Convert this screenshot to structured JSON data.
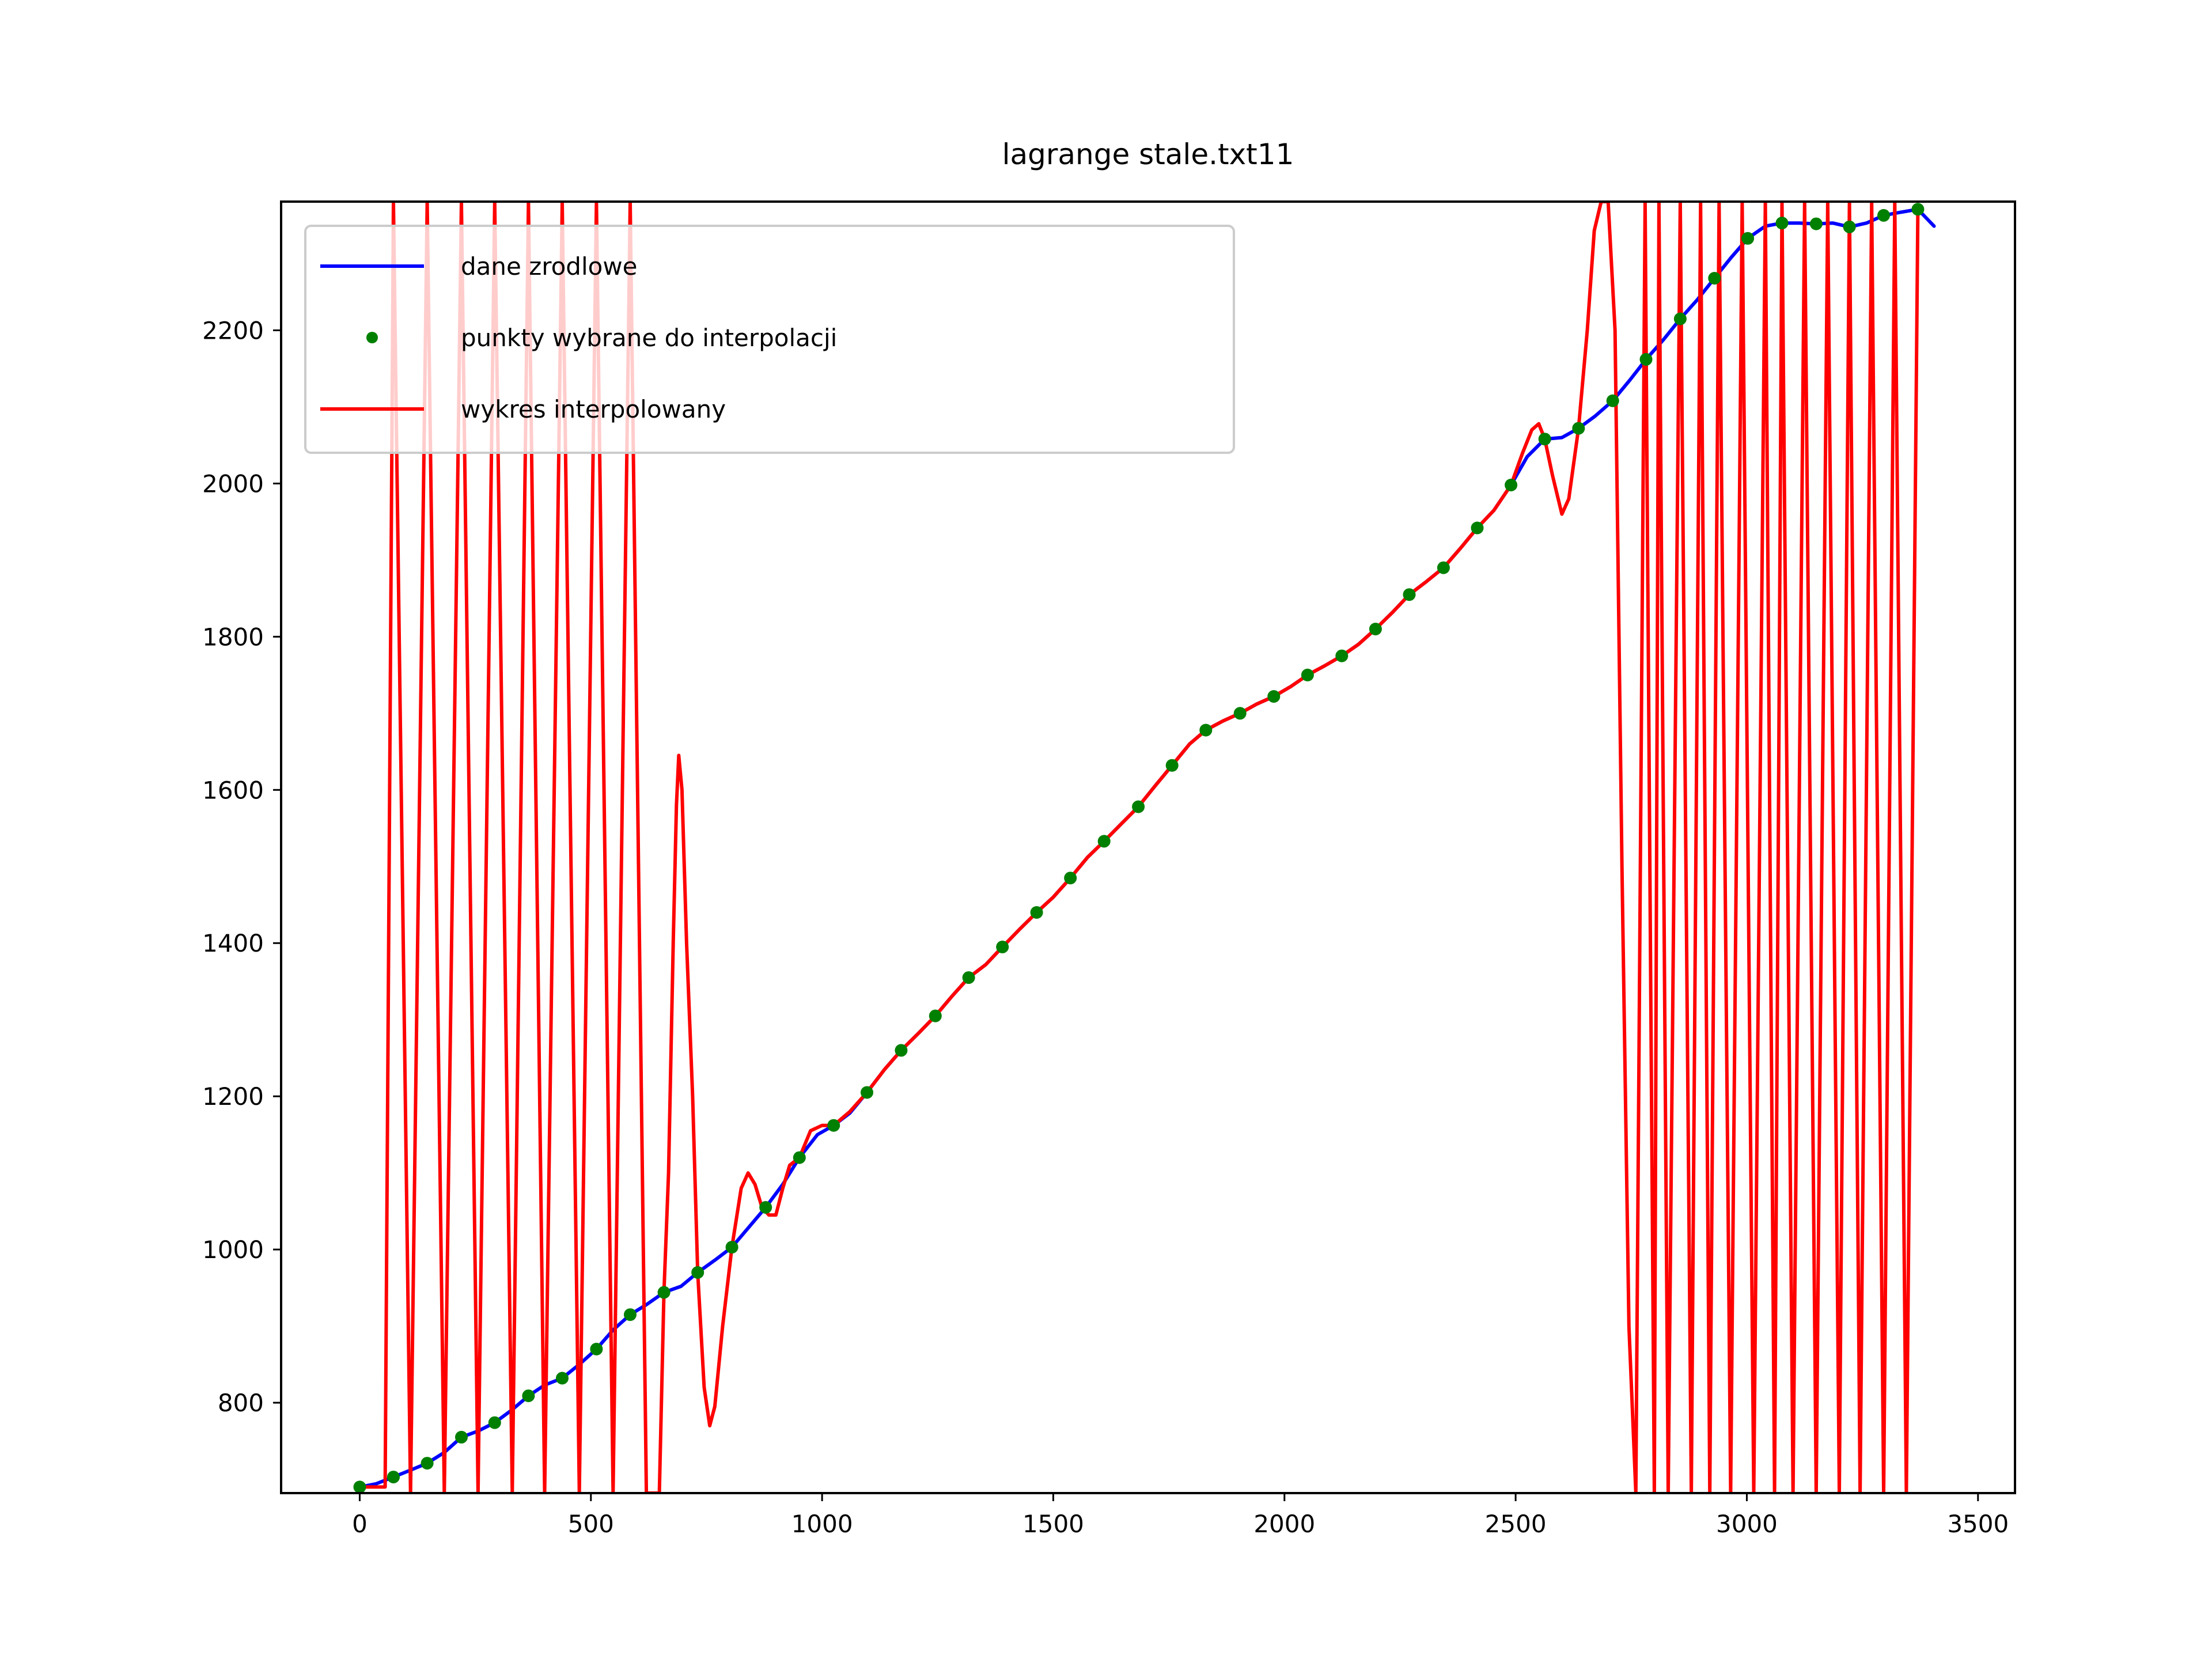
{
  "chart_data": {
    "type": "line",
    "title": "lagrange stale.txt11",
    "xlabel": "",
    "ylabel": "",
    "xlim": [
      -170,
      3580
    ],
    "ylim": [
      682,
      2368
    ],
    "x_ticks": [
      0,
      500,
      1000,
      1500,
      2000,
      2500,
      3000,
      3500
    ],
    "y_ticks": [
      800,
      1000,
      1200,
      1400,
      1600,
      1800,
      2000,
      2200
    ],
    "grid": false,
    "legend_position": "upper-left",
    "legend": [
      {
        "label": "dane zrodlowe",
        "color": "#0000ff",
        "marker": "line"
      },
      {
        "label": "punkty wybrane do interpolacji",
        "color": "#008000",
        "marker": "dot"
      },
      {
        "label": "wykres interpolowany",
        "color": "#ff0000",
        "marker": "line"
      }
    ],
    "series": [
      {
        "name": "dane zrodlowe",
        "color": "#0000ff",
        "kind": "line",
        "points": [
          [
            0,
            690
          ],
          [
            35,
            694
          ],
          [
            73,
            703
          ],
          [
            110,
            712
          ],
          [
            146,
            721
          ],
          [
            183,
            735
          ],
          [
            220,
            755
          ],
          [
            256,
            763
          ],
          [
            292,
            774
          ],
          [
            330,
            791
          ],
          [
            365,
            809
          ],
          [
            400,
            823
          ],
          [
            438,
            832
          ],
          [
            475,
            850
          ],
          [
            512,
            870
          ],
          [
            548,
            895
          ],
          [
            585,
            915
          ],
          [
            620,
            928
          ],
          [
            658,
            944
          ],
          [
            695,
            952
          ],
          [
            731,
            970
          ],
          [
            768,
            986
          ],
          [
            805,
            1003
          ],
          [
            840,
            1028
          ],
          [
            878,
            1055
          ],
          [
            915,
            1085
          ],
          [
            951,
            1120
          ],
          [
            990,
            1150
          ],
          [
            1025,
            1162
          ],
          [
            1060,
            1178
          ],
          [
            1097,
            1205
          ],
          [
            1135,
            1235
          ],
          [
            1171,
            1260
          ],
          [
            1208,
            1282
          ],
          [
            1245,
            1305
          ],
          [
            1280,
            1330
          ],
          [
            1317,
            1355
          ],
          [
            1354,
            1372
          ],
          [
            1390,
            1395
          ],
          [
            1427,
            1418
          ],
          [
            1464,
            1440
          ],
          [
            1500,
            1460
          ],
          [
            1537,
            1485
          ],
          [
            1574,
            1512
          ],
          [
            1610,
            1533
          ],
          [
            1646,
            1555
          ],
          [
            1684,
            1578
          ],
          [
            1720,
            1605
          ],
          [
            1757,
            1632
          ],
          [
            1795,
            1660
          ],
          [
            1830,
            1678
          ],
          [
            1867,
            1690
          ],
          [
            1904,
            1700
          ],
          [
            1940,
            1712
          ],
          [
            1977,
            1722
          ],
          [
            2014,
            1735
          ],
          [
            2050,
            1750
          ],
          [
            2087,
            1762
          ],
          [
            2124,
            1775
          ],
          [
            2160,
            1790
          ],
          [
            2197,
            1810
          ],
          [
            2234,
            1832
          ],
          [
            2270,
            1855
          ],
          [
            2307,
            1872
          ],
          [
            2344,
            1890
          ],
          [
            2380,
            1915
          ],
          [
            2417,
            1942
          ],
          [
            2453,
            1965
          ],
          [
            2490,
            1998
          ],
          [
            2525,
            2035
          ],
          [
            2563,
            2058
          ],
          [
            2600,
            2060
          ],
          [
            2636,
            2072
          ],
          [
            2672,
            2088
          ],
          [
            2710,
            2108
          ],
          [
            2747,
            2135
          ],
          [
            2782,
            2162
          ],
          [
            2820,
            2188
          ],
          [
            2856,
            2215
          ],
          [
            2893,
            2240
          ],
          [
            2930,
            2268
          ],
          [
            2966,
            2295
          ],
          [
            3002,
            2320
          ],
          [
            3040,
            2336
          ],
          [
            3076,
            2340
          ],
          [
            3113,
            2340
          ],
          [
            3150,
            2339
          ],
          [
            3186,
            2340
          ],
          [
            3222,
            2335
          ],
          [
            3259,
            2340
          ],
          [
            3296,
            2350
          ],
          [
            3332,
            2354
          ],
          [
            3370,
            2358
          ],
          [
            3405,
            2336
          ]
        ]
      },
      {
        "name": "punkty wybrane do interpolacji",
        "color": "#008000",
        "kind": "markers",
        "points": [
          [
            0,
            690
          ],
          [
            73,
            703
          ],
          [
            146,
            721
          ],
          [
            220,
            755
          ],
          [
            292,
            774
          ],
          [
            365,
            809
          ],
          [
            438,
            832
          ],
          [
            512,
            870
          ],
          [
            585,
            915
          ],
          [
            658,
            944
          ],
          [
            731,
            970
          ],
          [
            805,
            1003
          ],
          [
            878,
            1055
          ],
          [
            951,
            1120
          ],
          [
            1025,
            1162
          ],
          [
            1097,
            1205
          ],
          [
            1171,
            1260
          ],
          [
            1245,
            1305
          ],
          [
            1317,
            1355
          ],
          [
            1390,
            1395
          ],
          [
            1464,
            1440
          ],
          [
            1537,
            1485
          ],
          [
            1610,
            1533
          ],
          [
            1684,
            1578
          ],
          [
            1757,
            1632
          ],
          [
            1830,
            1678
          ],
          [
            1904,
            1700
          ],
          [
            1977,
            1722
          ],
          [
            2050,
            1750
          ],
          [
            2124,
            1775
          ],
          [
            2197,
            1810
          ],
          [
            2270,
            1855
          ],
          [
            2344,
            1890
          ],
          [
            2417,
            1942
          ],
          [
            2490,
            1998
          ],
          [
            2563,
            2058
          ],
          [
            2636,
            2072
          ],
          [
            2710,
            2108
          ],
          [
            2782,
            2162
          ],
          [
            2856,
            2215
          ],
          [
            2930,
            2268
          ],
          [
            3002,
            2320
          ],
          [
            3076,
            2340
          ],
          [
            3150,
            2339
          ],
          [
            3222,
            2335
          ],
          [
            3296,
            2350
          ],
          [
            3370,
            2358
          ]
        ]
      },
      {
        "name": "wykres interpolowany",
        "color": "#ff0000",
        "kind": "line",
        "points": [
          [
            0,
            690
          ],
          [
            55,
            690
          ],
          [
            73,
            2368
          ],
          [
            110,
            682
          ],
          [
            146,
            2368
          ],
          [
            183,
            682
          ],
          [
            220,
            2368
          ],
          [
            256,
            682
          ],
          [
            292,
            2368
          ],
          [
            330,
            682
          ],
          [
            365,
            2368
          ],
          [
            400,
            682
          ],
          [
            438,
            2368
          ],
          [
            475,
            682
          ],
          [
            512,
            2368
          ],
          [
            548,
            682
          ],
          [
            585,
            2368
          ],
          [
            620,
            682
          ],
          [
            648,
            682
          ],
          [
            658,
            944
          ],
          [
            668,
            1100
          ],
          [
            678,
            1400
          ],
          [
            685,
            1580
          ],
          [
            690,
            1645
          ],
          [
            697,
            1600
          ],
          [
            707,
            1400
          ],
          [
            720,
            1200
          ],
          [
            731,
            970
          ],
          [
            745,
            820
          ],
          [
            757,
            770
          ],
          [
            768,
            795
          ],
          [
            785,
            900
          ],
          [
            805,
            1003
          ],
          [
            825,
            1080
          ],
          [
            840,
            1100
          ],
          [
            855,
            1085
          ],
          [
            870,
            1055
          ],
          [
            885,
            1045
          ],
          [
            900,
            1045
          ],
          [
            915,
            1080
          ],
          [
            930,
            1110
          ],
          [
            951,
            1120
          ],
          [
            975,
            1155
          ],
          [
            1000,
            1162
          ],
          [
            1025,
            1162
          ],
          [
            1060,
            1180
          ],
          [
            1097,
            1205
          ],
          [
            1135,
            1235
          ],
          [
            1171,
            1260
          ],
          [
            1208,
            1282
          ],
          [
            1245,
            1305
          ],
          [
            1280,
            1330
          ],
          [
            1317,
            1355
          ],
          [
            1354,
            1372
          ],
          [
            1390,
            1395
          ],
          [
            1427,
            1418
          ],
          [
            1464,
            1440
          ],
          [
            1500,
            1460
          ],
          [
            1537,
            1485
          ],
          [
            1574,
            1512
          ],
          [
            1610,
            1533
          ],
          [
            1646,
            1555
          ],
          [
            1684,
            1578
          ],
          [
            1720,
            1605
          ],
          [
            1757,
            1632
          ],
          [
            1795,
            1660
          ],
          [
            1830,
            1678
          ],
          [
            1867,
            1690
          ],
          [
            1904,
            1700
          ],
          [
            1940,
            1712
          ],
          [
            1977,
            1722
          ],
          [
            2014,
            1735
          ],
          [
            2050,
            1750
          ],
          [
            2087,
            1762
          ],
          [
            2124,
            1775
          ],
          [
            2160,
            1790
          ],
          [
            2197,
            1810
          ],
          [
            2234,
            1832
          ],
          [
            2270,
            1855
          ],
          [
            2307,
            1872
          ],
          [
            2344,
            1890
          ],
          [
            2380,
            1915
          ],
          [
            2417,
            1942
          ],
          [
            2453,
            1965
          ],
          [
            2490,
            1998
          ],
          [
            2515,
            2040
          ],
          [
            2535,
            2070
          ],
          [
            2550,
            2078
          ],
          [
            2563,
            2058
          ],
          [
            2580,
            2010
          ],
          [
            2600,
            1960
          ],
          [
            2615,
            1980
          ],
          [
            2636,
            2072
          ],
          [
            2655,
            2200
          ],
          [
            2670,
            2330
          ],
          [
            2685,
            2368
          ],
          [
            2700,
            2368
          ],
          [
            2715,
            2200
          ],
          [
            2730,
            1500
          ],
          [
            2745,
            900
          ],
          [
            2760,
            682
          ],
          [
            2780,
            2368
          ],
          [
            2800,
            682
          ],
          [
            2810,
            2368
          ],
          [
            2830,
            682
          ],
          [
            2856,
            2368
          ],
          [
            2880,
            682
          ],
          [
            2900,
            2368
          ],
          [
            2920,
            682
          ],
          [
            2940,
            2368
          ],
          [
            2965,
            682
          ],
          [
            2990,
            2368
          ],
          [
            3015,
            682
          ],
          [
            3040,
            2368
          ],
          [
            3060,
            682
          ],
          [
            3076,
            2368
          ],
          [
            3100,
            682
          ],
          [
            3125,
            2368
          ],
          [
            3150,
            682
          ],
          [
            3175,
            2368
          ],
          [
            3200,
            682
          ],
          [
            3222,
            2368
          ],
          [
            3245,
            682
          ],
          [
            3270,
            2368
          ],
          [
            3296,
            682
          ],
          [
            3320,
            2368
          ],
          [
            3345,
            682
          ],
          [
            3370,
            2358
          ]
        ]
      }
    ]
  }
}
